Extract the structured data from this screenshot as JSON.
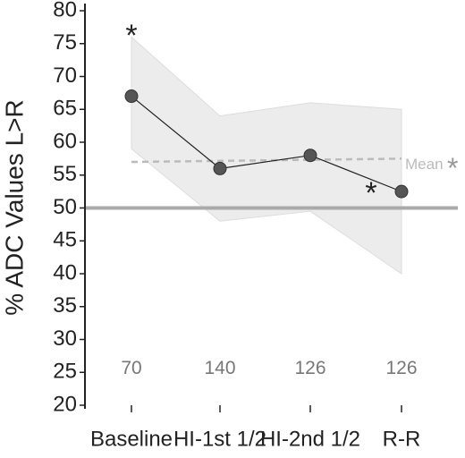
{
  "chart_data": {
    "type": "line",
    "ylabel": "% ADC Values L>R",
    "categories": [
      "Baseline",
      "HI-1st 1/2",
      "HI-2nd 1/2",
      "R-R"
    ],
    "values": [
      67,
      56,
      58,
      52.5
    ],
    "upper": [
      76,
      64,
      66,
      65
    ],
    "lower": [
      59,
      48,
      49.5,
      40
    ],
    "n": [
      70,
      140,
      126,
      126
    ],
    "reference": 50,
    "mean": 57,
    "mean_label": "Mean",
    "mean_mark": "*",
    "significance_marks": [
      "*",
      "*"
    ],
    "color": "#555555",
    "band_color": "#ececec",
    "ylim": [
      20,
      80
    ],
    "yticks": [
      20,
      25,
      30,
      35,
      40,
      45,
      50,
      55,
      60,
      65,
      70,
      75,
      80
    ]
  }
}
